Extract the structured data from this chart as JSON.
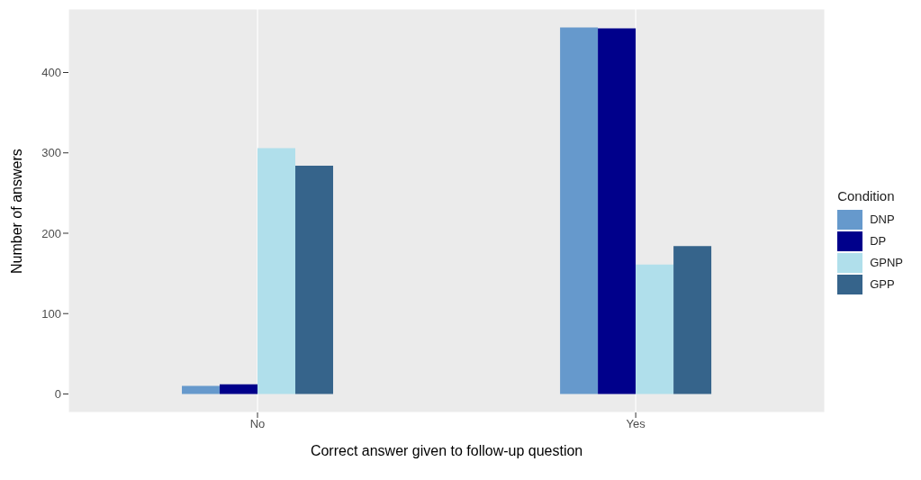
{
  "chart_data": {
    "type": "bar",
    "xlabel": "Correct answer given to follow-up question",
    "ylabel": "Number of answers",
    "legend_title": "Condition",
    "categories": [
      "No",
      "Yes"
    ],
    "series": [
      {
        "name": "DNP",
        "color": "#6699cc",
        "values": [
          10,
          456
        ]
      },
      {
        "name": "DP",
        "color": "#00008b",
        "values": [
          12,
          455
        ]
      },
      {
        "name": "GPNP",
        "color": "#b0dfeb",
        "values": [
          306,
          161
        ]
      },
      {
        "name": "GPP",
        "color": "#36648b",
        "values": [
          284,
          184
        ]
      }
    ],
    "ylim": [
      -23,
      479
    ],
    "yticks": [
      0,
      100,
      200,
      300,
      400
    ],
    "grid": true,
    "legend": "right"
  }
}
